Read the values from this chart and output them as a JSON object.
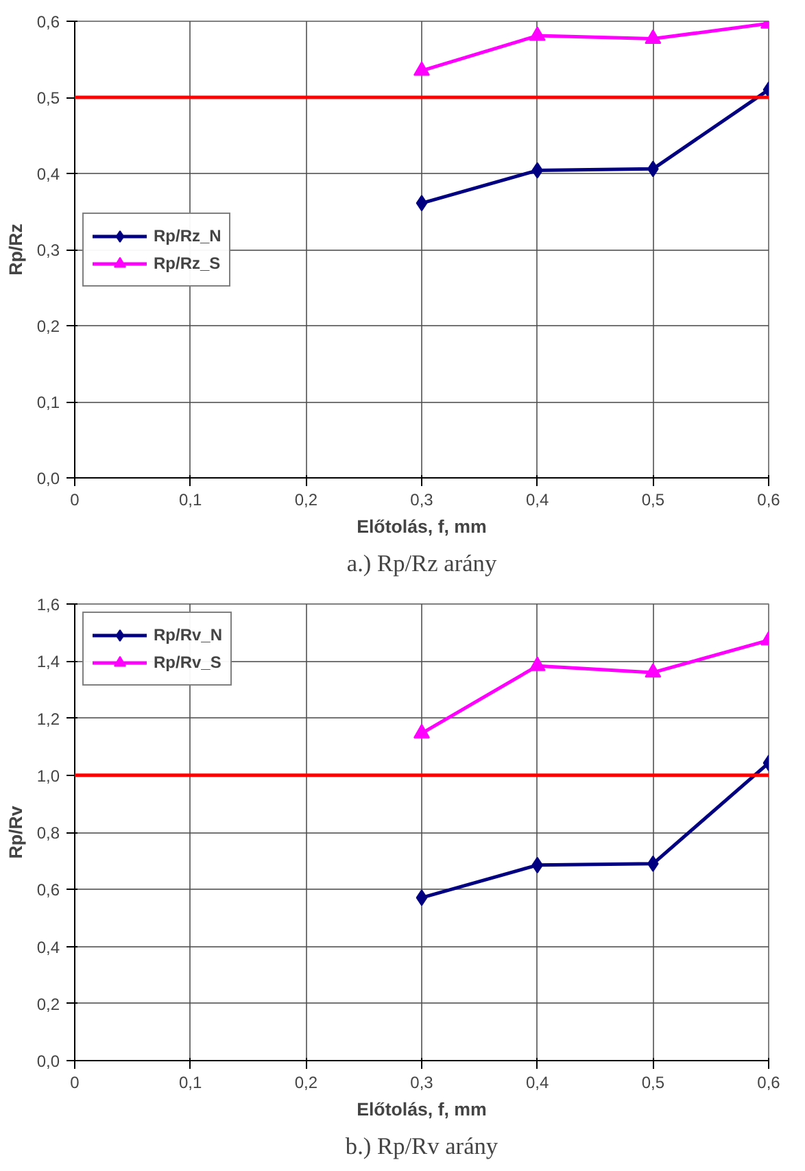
{
  "chart_data": [
    {
      "type": "line",
      "xlabel": "Előtolás, f, mm",
      "ylabel": "Rp/Rz",
      "annotations": [
        "a.) Rp/Rz arány"
      ],
      "x": [
        0.3,
        0.4,
        0.5,
        0.6
      ],
      "series": [
        {
          "name": "Rp/Rz_N",
          "color": "#000080",
          "marker": "diamond",
          "values": [
            0.361,
            0.404,
            0.406,
            0.51
          ]
        },
        {
          "name": "Rp/Rz_S",
          "color": "#ff00ff",
          "marker": "triangle",
          "values": [
            0.535,
            0.581,
            0.577,
            0.597
          ]
        }
      ],
      "xlim": [
        0,
        0.6
      ],
      "xticks": [
        {
          "value": 0,
          "label": "0"
        },
        {
          "value": 0.1,
          "label": "0,1"
        },
        {
          "value": 0.2,
          "label": "0,2"
        },
        {
          "value": 0.3,
          "label": "0,3"
        },
        {
          "value": 0.4,
          "label": "0,4"
        },
        {
          "value": 0.5,
          "label": "0,5"
        },
        {
          "value": 0.6,
          "label": "0,6"
        }
      ],
      "ylim": [
        0,
        0.6
      ],
      "yticks": [
        {
          "value": 0,
          "label": "0,0"
        },
        {
          "value": 0.1,
          "label": "0,1"
        },
        {
          "value": 0.2,
          "label": "0,2"
        },
        {
          "value": 0.3,
          "label": "0,3"
        },
        {
          "value": 0.4,
          "label": "0,4"
        },
        {
          "value": 0.5,
          "label": "0,5"
        },
        {
          "value": 0.6,
          "label": "0,6"
        }
      ],
      "ref_lines": [
        {
          "axis": "y",
          "value": 0.5,
          "label": null,
          "color": "#ff0000"
        }
      ],
      "grid": true,
      "legend": "left",
      "line_style": "solid"
    },
    {
      "type": "line",
      "xlabel": "Előtolás, f, mm",
      "ylabel": "Rp/Rv",
      "annotations": [
        "b.) Rp/Rv arány"
      ],
      "x": [
        0.3,
        0.4,
        0.5,
        0.6
      ],
      "series": [
        {
          "name": "Rp/Rv_N",
          "color": "#000080",
          "marker": "diamond",
          "values": [
            0.571,
            0.685,
            0.69,
            1.043
          ]
        },
        {
          "name": "Rp/Rv_S",
          "color": "#ff00ff",
          "marker": "triangle",
          "values": [
            1.147,
            1.383,
            1.36,
            1.473
          ]
        }
      ],
      "xlim": [
        0,
        0.6
      ],
      "xticks": [
        {
          "value": 0,
          "label": "0"
        },
        {
          "value": 0.1,
          "label": "0,1"
        },
        {
          "value": 0.2,
          "label": "0,2"
        },
        {
          "value": 0.3,
          "label": "0,3"
        },
        {
          "value": 0.4,
          "label": "0,4"
        },
        {
          "value": 0.5,
          "label": "0,5"
        },
        {
          "value": 0.6,
          "label": "0,6"
        }
      ],
      "ylim": [
        0,
        1.6
      ],
      "yticks": [
        {
          "value": 0,
          "label": "0,0"
        },
        {
          "value": 0.2,
          "label": "0,2"
        },
        {
          "value": 0.4,
          "label": "0,4"
        },
        {
          "value": 0.6,
          "label": "0,6"
        },
        {
          "value": 0.8,
          "label": "0,8"
        },
        {
          "value": 1.0,
          "label": "1,0"
        },
        {
          "value": 1.2,
          "label": "1,2"
        },
        {
          "value": 1.4,
          "label": "1,4"
        },
        {
          "value": 1.6,
          "label": "1,6"
        }
      ],
      "ref_lines": [
        {
          "axis": "y",
          "value": 1.0,
          "label": null,
          "color": "#ff0000"
        }
      ],
      "grid": true,
      "legend": "top_left",
      "line_style": "solid"
    }
  ]
}
